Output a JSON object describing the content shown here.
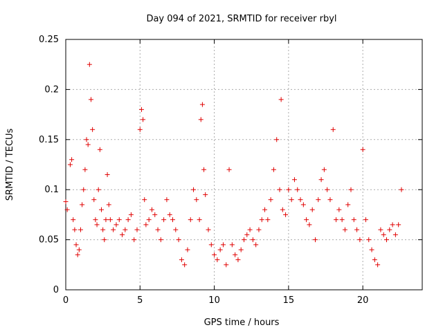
{
  "chart_data": {
    "type": "scatter",
    "title": "Day 094 of 2021, SRMTID for receiver rbyl",
    "xlabel": "GPS time / hours",
    "ylabel": "SRMTID / TECUs",
    "xlim": [
      0,
      24
    ],
    "ylim": [
      0,
      0.25
    ],
    "xticks": [
      0,
      5,
      10,
      15,
      20
    ],
    "xtick_labels": [
      "0",
      "5",
      "10",
      "15",
      "20"
    ],
    "yticks": [
      0,
      0.05,
      0.1,
      0.15,
      0.2,
      0.25
    ],
    "ytick_labels": [
      "0",
      "0.05",
      "0.1",
      "0.15",
      "0.2",
      "0.25"
    ],
    "grid": true,
    "marker": "+",
    "series_color": "#e00000",
    "series": [
      {
        "x": [
          0.0,
          0.1,
          0.3,
          0.4,
          0.5,
          0.6,
          0.7,
          0.8,
          0.9,
          1.0,
          1.1,
          1.2,
          1.3,
          1.4,
          1.5,
          1.6,
          1.7,
          1.8,
          1.9,
          2.0,
          2.1,
          2.2,
          2.3,
          2.4,
          2.5,
          2.6,
          2.7,
          2.8,
          2.9,
          3.0,
          3.2,
          3.4,
          3.6,
          3.8,
          4.0,
          4.2,
          4.4,
          4.6,
          4.8,
          5.0,
          5.1,
          5.2,
          5.3,
          5.4,
          5.6,
          5.8,
          6.0,
          6.2,
          6.4,
          6.6,
          6.8,
          7.0,
          7.2,
          7.4,
          7.6,
          7.8,
          8.0,
          8.2,
          8.4,
          8.6,
          8.8,
          9.0,
          9.1,
          9.2,
          9.3,
          9.4,
          9.6,
          9.8,
          10.0,
          10.2,
          10.4,
          10.6,
          10.8,
          11.0,
          11.2,
          11.4,
          11.6,
          11.8,
          12.0,
          12.2,
          12.4,
          12.6,
          12.8,
          13.0,
          13.2,
          13.4,
          13.6,
          13.8,
          14.0,
          14.2,
          14.4,
          14.5,
          14.6,
          14.8,
          15.0,
          15.2,
          15.4,
          15.6,
          15.8,
          16.0,
          16.2,
          16.4,
          16.6,
          16.8,
          17.0,
          17.2,
          17.4,
          17.6,
          17.8,
          18.0,
          18.2,
          18.4,
          18.6,
          18.8,
          19.0,
          19.2,
          19.4,
          19.6,
          19.8,
          20.0,
          20.2,
          20.4,
          20.6,
          20.8,
          21.0,
          21.2,
          21.4,
          21.6,
          21.8,
          22.0,
          22.2,
          22.4,
          22.6
        ],
        "y": [
          0.088,
          0.08,
          0.125,
          0.13,
          0.07,
          0.06,
          0.045,
          0.035,
          0.04,
          0.06,
          0.085,
          0.1,
          0.12,
          0.15,
          0.145,
          0.225,
          0.19,
          0.16,
          0.09,
          0.07,
          0.065,
          0.1,
          0.14,
          0.08,
          0.06,
          0.05,
          0.07,
          0.115,
          0.085,
          0.07,
          0.06,
          0.065,
          0.07,
          0.055,
          0.06,
          0.07,
          0.075,
          0.05,
          0.06,
          0.16,
          0.18,
          0.17,
          0.09,
          0.065,
          0.07,
          0.08,
          0.075,
          0.06,
          0.05,
          0.07,
          0.09,
          0.075,
          0.07,
          0.06,
          0.05,
          0.03,
          0.025,
          0.04,
          0.07,
          0.1,
          0.09,
          0.07,
          0.17,
          0.185,
          0.12,
          0.095,
          0.06,
          0.045,
          0.035,
          0.03,
          0.04,
          0.045,
          0.025,
          0.12,
          0.045,
          0.035,
          0.03,
          0.04,
          0.05,
          0.055,
          0.06,
          0.05,
          0.045,
          0.06,
          0.07,
          0.08,
          0.07,
          0.09,
          0.12,
          0.15,
          0.1,
          0.19,
          0.08,
          0.075,
          0.1,
          0.09,
          0.11,
          0.1,
          0.09,
          0.085,
          0.07,
          0.065,
          0.08,
          0.05,
          0.09,
          0.11,
          0.12,
          0.1,
          0.09,
          0.16,
          0.07,
          0.08,
          0.07,
          0.06,
          0.085,
          0.1,
          0.07,
          0.06,
          0.05,
          0.14,
          0.07,
          0.05,
          0.04,
          0.03,
          0.025,
          0.06,
          0.055,
          0.05,
          0.06,
          0.065,
          0.055,
          0.065,
          0.1
        ]
      }
    ]
  }
}
